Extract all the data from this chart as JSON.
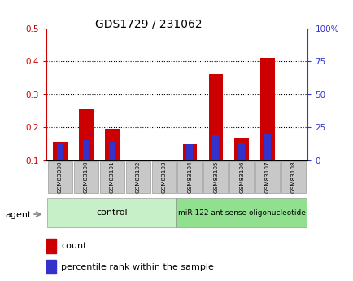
{
  "title": "GDS1729 / 231062",
  "categories": [
    "GSM83090",
    "GSM83100",
    "GSM83101",
    "GSM83102",
    "GSM83103",
    "GSM83104",
    "GSM83105",
    "GSM83106",
    "GSM83107",
    "GSM83108"
  ],
  "count_values": [
    0.155,
    0.255,
    0.195,
    0.1,
    0.1,
    0.148,
    0.36,
    0.165,
    0.41,
    0.1
  ],
  "percentile_pct": [
    13,
    15,
    14,
    0,
    0,
    12,
    19,
    13,
    20,
    0
  ],
  "ylim_left": [
    0.1,
    0.5
  ],
  "ylim_right": [
    0,
    100
  ],
  "yticks_left": [
    0.1,
    0.2,
    0.3,
    0.4,
    0.5
  ],
  "yticks_right": [
    0,
    25,
    50,
    75,
    100
  ],
  "ytick_labels_right": [
    "0",
    "25",
    "50",
    "75",
    "100%"
  ],
  "ytick_labels_left": [
    "0.1",
    "0.2",
    "0.3",
    "0.4",
    "0.5"
  ],
  "group_control": [
    0,
    1,
    2,
    3,
    4
  ],
  "group_treatment": [
    5,
    6,
    7,
    8,
    9
  ],
  "group_control_label": "control",
  "group_treatment_label": "miR-122 antisense oligonucleotide",
  "agent_label": "agent",
  "count_color": "#cc0000",
  "percentile_color": "#3333cc",
  "bar_width": 0.55,
  "blue_bar_width": 0.25,
  "background_color": "#ffffff",
  "tick_label_bg": "#c8c8c8",
  "control_bg": "#c8f0c8",
  "treatment_bg": "#90e090",
  "legend_count": "count",
  "legend_percentile": "percentile rank within the sample"
}
